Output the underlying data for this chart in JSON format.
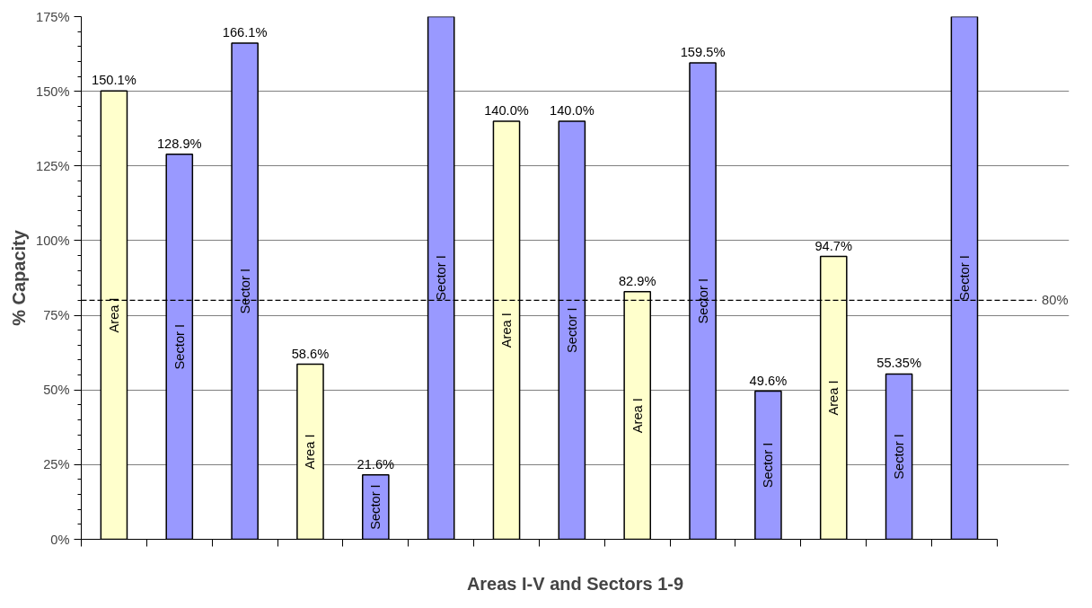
{
  "chart_data": {
    "type": "bar",
    "xlabel": "Areas I-V and Sectors 1-9",
    "ylabel": "% Capacity",
    "categories": [
      null,
      null,
      null,
      null,
      null,
      null,
      null,
      null,
      null,
      null,
      null,
      null,
      null,
      null
    ],
    "annotations": [
      "Area I",
      "Sector I",
      "Sector I",
      "Area I",
      "Sector I",
      "Sector I",
      "Area I",
      "Sector I",
      "Area I",
      "Sector I",
      "Sector I",
      "Area I",
      "Sector I",
      "Sector I"
    ],
    "values": [
      150.1,
      128.9,
      166.1,
      58.6,
      21.6,
      175,
      140.0,
      140.0,
      82.9,
      159.5,
      49.6,
      94.7,
      55.35,
      175
    ],
    "value_labels": [
      "150.1%",
      "128.9%",
      "166.1%",
      "58.6%",
      "21.6%",
      null,
      "140.0%",
      "140.0%",
      "82.9%",
      "159.5%",
      "49.6%",
      "94.7%",
      "55.35%",
      null
    ],
    "colors": [
      "#ffffcc",
      "#9999ff",
      "#9999ff",
      "#ffffcc",
      "#9999ff",
      "#9999ff",
      "#ffffcc",
      "#9999ff",
      "#ffffcc",
      "#9999ff",
      "#9999ff",
      "#ffffcc",
      "#9999ff",
      "#9999ff"
    ],
    "ylim": [
      0,
      175
    ],
    "yticks": [
      {
        "value": 0,
        "label": "0%"
      },
      {
        "value": 25,
        "label": "25%"
      },
      {
        "value": 50,
        "label": "50%"
      },
      {
        "value": 75,
        "label": "75%"
      },
      {
        "value": 100,
        "label": "100%"
      },
      {
        "value": 125,
        "label": "125%"
      },
      {
        "value": 150,
        "label": "150%"
      },
      {
        "value": 175,
        "label": "175%"
      }
    ],
    "ref_lines": [
      {
        "axis": "y",
        "value": 80,
        "label": "80%",
        "color": "#000000",
        "line_style": "dashed"
      }
    ],
    "grid": "y"
  }
}
